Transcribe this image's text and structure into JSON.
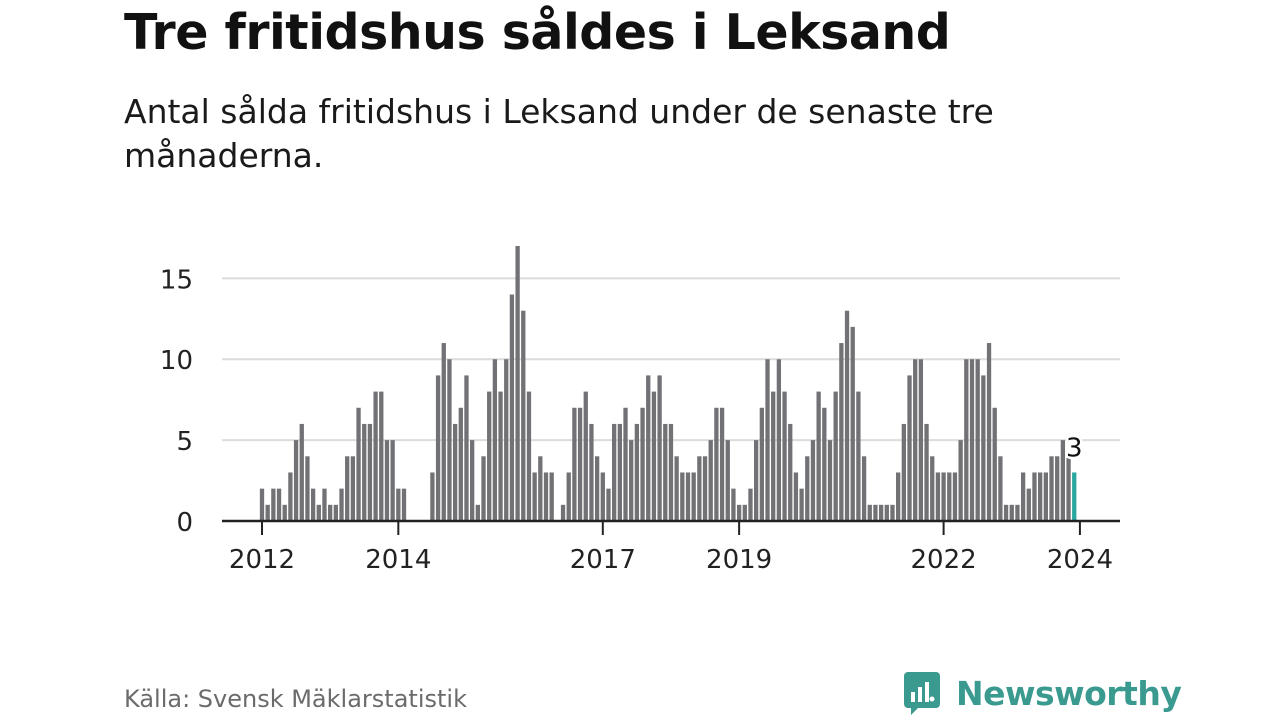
{
  "chart_data": {
    "type": "bar",
    "title": "Tre fritidshus såldes i Leksand",
    "subtitle": "Antal sålda fritidshus i Leksand under de senaste tre månaderna.",
    "source": "Källa: Svensk Mäklarstatistik",
    "brand": "Newsworthy",
    "x_tick_labels": [
      "2012",
      "2014",
      "2017",
      "2019",
      "2022",
      "2024"
    ],
    "x_tick_index": [
      0,
      24,
      60,
      84,
      120,
      144
    ],
    "y_ticks": [
      0,
      5,
      10,
      15
    ],
    "ylim": [
      0,
      17
    ],
    "values": [
      2,
      1,
      2,
      2,
      1,
      3,
      5,
      6,
      4,
      2,
      1,
      2,
      1,
      1,
      2,
      4,
      4,
      7,
      6,
      6,
      8,
      8,
      5,
      5,
      2,
      2,
      0,
      0,
      0,
      0,
      3,
      9,
      11,
      10,
      6,
      7,
      9,
      5,
      1,
      4,
      8,
      10,
      8,
      10,
      14,
      17,
      13,
      8,
      3,
      4,
      3,
      3,
      0,
      1,
      3,
      7,
      7,
      8,
      6,
      4,
      3,
      2,
      6,
      6,
      7,
      5,
      6,
      7,
      9,
      8,
      9,
      6,
      6,
      4,
      3,
      3,
      3,
      4,
      4,
      5,
      7,
      7,
      5,
      2,
      1,
      1,
      2,
      5,
      7,
      10,
      8,
      10,
      8,
      6,
      3,
      2,
      4,
      5,
      8,
      7,
      5,
      8,
      11,
      13,
      12,
      8,
      4,
      1,
      1,
      1,
      1,
      1,
      3,
      6,
      9,
      10,
      10,
      6,
      4,
      3,
      3,
      3,
      3,
      5,
      10,
      10,
      10,
      9,
      11,
      7,
      4,
      1,
      1,
      1,
      3,
      2,
      3,
      3,
      3,
      4,
      4,
      5,
      4,
      3
    ],
    "highlight_label": "3",
    "colors": {
      "bar": "#727276",
      "highlight": "#2aa8a0",
      "grid": "#dcdcdc",
      "axis": "#222222",
      "brand": "#3a9a90"
    }
  }
}
